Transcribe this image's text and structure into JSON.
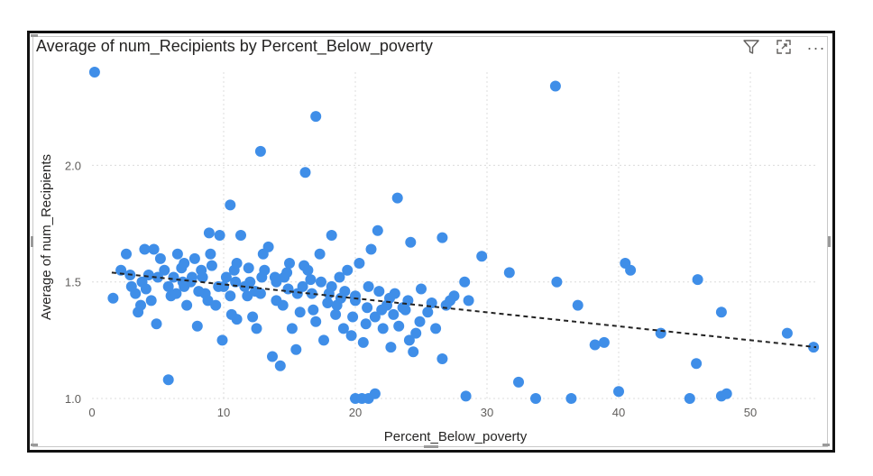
{
  "header": {
    "title": "Average of num_Recipients by Percent_Below_poverty",
    "filter_icon": "filter-icon",
    "focus_icon": "focus-mode-icon",
    "more_icon": "more-options-icon"
  },
  "colors": {
    "points": "#3f8ee8",
    "trend": "#222222",
    "grid": "#dcdcdc"
  },
  "chart_data": {
    "type": "scatter",
    "title": "Average of num_Recipients by Percent_Below_poverty",
    "xlabel": "Percent_Below_poverty",
    "ylabel": "Average of num_Recipients",
    "xlim": [
      0,
      55
    ],
    "ylim": [
      1.0,
      2.4
    ],
    "x_ticks": [
      "0",
      "10",
      "20",
      "30",
      "40",
      "50"
    ],
    "y_ticks": [
      "1.0",
      "1.5",
      "2.0"
    ],
    "grid": true,
    "trendline": {
      "style": "dashed",
      "points": [
        [
          1.5,
          1.54
        ],
        [
          55,
          1.22
        ]
      ]
    },
    "points": [
      [
        0.2,
        2.4
      ],
      [
        35.2,
        2.34
      ],
      [
        17.0,
        2.21
      ],
      [
        12.8,
        2.06
      ],
      [
        16.2,
        1.97
      ],
      [
        23.2,
        1.86
      ],
      [
        10.5,
        1.83
      ],
      [
        21.7,
        1.72
      ],
      [
        24.2,
        1.67
      ],
      [
        26.6,
        1.69
      ],
      [
        18.2,
        1.7
      ],
      [
        29.6,
        1.61
      ],
      [
        31.7,
        1.54
      ],
      [
        35.3,
        1.5
      ],
      [
        36.9,
        1.4
      ],
      [
        40.5,
        1.58
      ],
      [
        40.9,
        1.55
      ],
      [
        46.0,
        1.51
      ],
      [
        47.8,
        1.37
      ],
      [
        38.9,
        1.24
      ],
      [
        38.2,
        1.23
      ],
      [
        43.2,
        1.28
      ],
      [
        52.8,
        1.28
      ],
      [
        54.8,
        1.22
      ],
      [
        45.9,
        1.15
      ],
      [
        26.6,
        1.17
      ],
      [
        25.0,
        1.47
      ],
      [
        25.5,
        1.37
      ],
      [
        27.5,
        1.44
      ],
      [
        28.6,
        1.42
      ],
      [
        28.3,
        1.5
      ],
      [
        26.1,
        1.3
      ],
      [
        1.6,
        1.43
      ],
      [
        2.6,
        1.62
      ],
      [
        2.9,
        1.53
      ],
      [
        3.3,
        1.45
      ],
      [
        3.5,
        1.37
      ],
      [
        3.8,
        1.5
      ],
      [
        4.0,
        1.64
      ],
      [
        4.3,
        1.53
      ],
      [
        4.5,
        1.42
      ],
      [
        4.9,
        1.32
      ],
      [
        4.7,
        1.64
      ],
      [
        5.2,
        1.6
      ],
      [
        5.5,
        1.55
      ],
      [
        5.8,
        1.48
      ],
      [
        6.0,
        1.44
      ],
      [
        6.2,
        1.52
      ],
      [
        6.5,
        1.62
      ],
      [
        6.8,
        1.56
      ],
      [
        7.0,
        1.48
      ],
      [
        7.2,
        1.4
      ],
      [
        7.5,
        1.5
      ],
      [
        7.8,
        1.6
      ],
      [
        8.0,
        1.31
      ],
      [
        8.3,
        1.55
      ],
      [
        8.6,
        1.45
      ],
      [
        8.9,
        1.71
      ],
      [
        9.1,
        1.57
      ],
      [
        9.4,
        1.4
      ],
      [
        9.7,
        1.7
      ],
      [
        9.9,
        1.25
      ],
      [
        10.2,
        1.52
      ],
      [
        10.5,
        1.44
      ],
      [
        10.8,
        1.55
      ],
      [
        11.0,
        1.34
      ],
      [
        11.3,
        1.7
      ],
      [
        11.6,
        1.48
      ],
      [
        11.9,
        1.56
      ],
      [
        12.2,
        1.35
      ],
      [
        12.5,
        1.3
      ],
      [
        12.8,
        1.45
      ],
      [
        13.1,
        1.55
      ],
      [
        13.4,
        1.65
      ],
      [
        13.7,
        1.18
      ],
      [
        14.0,
        1.42
      ],
      [
        14.3,
        1.14
      ],
      [
        14.6,
        1.52
      ],
      [
        14.9,
        1.47
      ],
      [
        15.2,
        1.3
      ],
      [
        15.5,
        1.21
      ],
      [
        15.8,
        1.37
      ],
      [
        16.1,
        1.57
      ],
      [
        16.4,
        1.55
      ],
      [
        16.7,
        1.45
      ],
      [
        17.0,
        1.33
      ],
      [
        17.3,
        1.62
      ],
      [
        17.6,
        1.25
      ],
      [
        17.9,
        1.41
      ],
      [
        18.2,
        1.48
      ],
      [
        18.5,
        1.36
      ],
      [
        18.8,
        1.52
      ],
      [
        19.1,
        1.3
      ],
      [
        19.4,
        1.55
      ],
      [
        19.7,
        1.27
      ],
      [
        20.0,
        1.44
      ],
      [
        20.3,
        1.58
      ],
      [
        20.6,
        1.24
      ],
      [
        20.9,
        1.39
      ],
      [
        21.2,
        1.64
      ],
      [
        21.5,
        1.35
      ],
      [
        21.8,
        1.46
      ],
      [
        22.1,
        1.3
      ],
      [
        22.4,
        1.4
      ],
      [
        22.7,
        1.22
      ],
      [
        23.0,
        1.45
      ],
      [
        23.3,
        1.31
      ],
      [
        23.6,
        1.39
      ],
      [
        24.1,
        1.25
      ],
      [
        24.4,
        1.2
      ],
      [
        24.9,
        1.33
      ],
      [
        5.8,
        1.08
      ],
      [
        20.0,
        1.0
      ],
      [
        20.5,
        1.0
      ],
      [
        21.0,
        1.0
      ],
      [
        21.5,
        1.02
      ],
      [
        28.4,
        1.01
      ],
      [
        32.4,
        1.07
      ],
      [
        33.7,
        1.0
      ],
      [
        36.4,
        1.0
      ],
      [
        40.0,
        1.03
      ],
      [
        45.4,
        1.0
      ],
      [
        47.8,
        1.01
      ],
      [
        48.2,
        1.02
      ],
      [
        3.0,
        1.48
      ],
      [
        8.4,
        1.52
      ],
      [
        10.0,
        1.48
      ],
      [
        12.0,
        1.5
      ],
      [
        14.0,
        1.5
      ],
      [
        16.0,
        1.48
      ],
      [
        18.0,
        1.45
      ],
      [
        20.0,
        1.42
      ],
      [
        22.0,
        1.38
      ],
      [
        24.0,
        1.42
      ],
      [
        15.0,
        1.58
      ],
      [
        13.0,
        1.62
      ],
      [
        11.0,
        1.58
      ],
      [
        9.0,
        1.62
      ],
      [
        7.0,
        1.58
      ],
      [
        5.0,
        1.52
      ],
      [
        2.2,
        1.55
      ],
      [
        6.4,
        1.45
      ],
      [
        8.8,
        1.42
      ],
      [
        10.6,
        1.36
      ],
      [
        12.4,
        1.46
      ],
      [
        14.5,
        1.4
      ],
      [
        16.8,
        1.38
      ],
      [
        18.6,
        1.4
      ],
      [
        19.8,
        1.35
      ],
      [
        22.6,
        1.43
      ],
      [
        26.9,
        1.4
      ],
      [
        3.7,
        1.4
      ],
      [
        7.6,
        1.52
      ],
      [
        9.6,
        1.48
      ],
      [
        11.8,
        1.44
      ],
      [
        13.9,
        1.52
      ],
      [
        15.6,
        1.45
      ],
      [
        17.4,
        1.5
      ],
      [
        19.2,
        1.46
      ],
      [
        21.0,
        1.48
      ],
      [
        23.8,
        1.38
      ],
      [
        25.8,
        1.41
      ],
      [
        4.1,
        1.47
      ],
      [
        6.9,
        1.5
      ],
      [
        8.1,
        1.46
      ],
      [
        10.9,
        1.5
      ],
      [
        12.9,
        1.52
      ],
      [
        14.8,
        1.54
      ],
      [
        16.6,
        1.51
      ],
      [
        18.9,
        1.43
      ],
      [
        20.8,
        1.32
      ],
      [
        22.9,
        1.36
      ],
      [
        24.6,
        1.28
      ],
      [
        27.2,
        1.42
      ]
    ]
  }
}
